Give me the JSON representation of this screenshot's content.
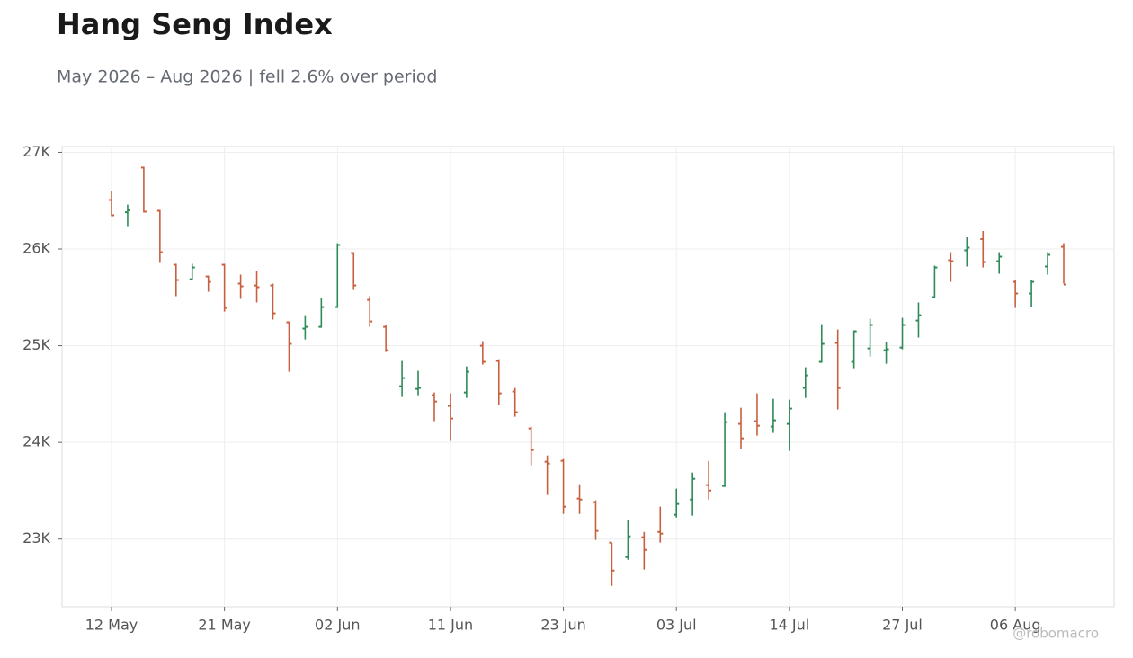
{
  "chart_data": {
    "type": "ohlc",
    "title": "Hang Seng Index",
    "subtitle": "May 2026 – Aug 2026 | fell 2.6% over period",
    "watermark": "@robomacro",
    "categories": [
      "12 May",
      null,
      null,
      null,
      null,
      null,
      null,
      "21 May",
      null,
      null,
      null,
      null,
      null,
      null,
      "02 Jun",
      null,
      null,
      null,
      null,
      null,
      null,
      "11 Jun",
      null,
      null,
      null,
      null,
      null,
      null,
      "23 Jun",
      null,
      null,
      null,
      null,
      null,
      null,
      "03 Jul",
      null,
      null,
      null,
      null,
      null,
      null,
      "14 Jul",
      null,
      null,
      null,
      null,
      null,
      null,
      "27 Jul",
      null,
      null,
      null,
      null,
      null,
      null,
      "06 Aug",
      null,
      null,
      null
    ],
    "open": [
      26507,
      26380,
      26842,
      26395,
      25837,
      25688,
      25716,
      25837,
      25642,
      25623,
      25623,
      25242,
      25177,
      25195,
      25400,
      25958,
      25474,
      25195,
      24581,
      24553,
      24488,
      24377,
      24516,
      25000,
      24842,
      24526,
      24144,
      23800,
      23809,
      23419,
      23381,
      22963,
      22814,
      23019,
      23074,
      23251,
      23409,
      23558,
      23549,
      24191,
      24219,
      24163,
      24191,
      24563,
      24833,
      25028,
      24833,
      24972,
      24953,
      24981,
      25260,
      25502,
      25884,
      25986,
      26102,
      25874,
      25660,
      25540,
      25819,
      26023
    ],
    "high": [
      26600,
      26460,
      26851,
      26405,
      25847,
      25847,
      25726,
      25847,
      25735,
      25772,
      25642,
      25251,
      25316,
      25493,
      26060,
      25967,
      25512,
      25214,
      24842,
      24740,
      24516,
      24507,
      24786,
      25047,
      24860,
      24563,
      24163,
      23865,
      23828,
      23567,
      23400,
      22963,
      23195,
      23074,
      23335,
      23521,
      23688,
      23809,
      24312,
      24358,
      24507,
      24451,
      24442,
      24777,
      25223,
      25167,
      25158,
      25279,
      25037,
      25288,
      25447,
      25828,
      25967,
      26121,
      26186,
      25967,
      25679,
      25679,
      25967,
      26060
    ],
    "low": [
      26340,
      26237,
      26377,
      25856,
      25512,
      25679,
      25558,
      25353,
      25484,
      25447,
      25270,
      24730,
      25065,
      25186,
      25391,
      25577,
      25195,
      24935,
      24470,
      24488,
      24219,
      24014,
      24460,
      24805,
      24386,
      24265,
      23763,
      23456,
      23260,
      23260,
      22991,
      22516,
      22786,
      22684,
      22963,
      23223,
      23242,
      23409,
      23540,
      23930,
      24070,
      24098,
      23912,
      24460,
      24823,
      24340,
      24767,
      24888,
      24814,
      24963,
      25084,
      25493,
      25660,
      25819,
      25809,
      25744,
      25391,
      25400,
      25735,
      25642
    ],
    "close": [
      26349,
      26400,
      26386,
      25967,
      25679,
      25809,
      25660,
      25391,
      25614,
      25605,
      25335,
      25019,
      25195,
      25400,
      26042,
      25623,
      25251,
      24953,
      24665,
      24563,
      24423,
      24247,
      24730,
      24833,
      24507,
      24312,
      23921,
      23781,
      23335,
      23409,
      23084,
      22674,
      23028,
      22888,
      23056,
      23363,
      23623,
      23502,
      24209,
      24042,
      24172,
      24228,
      24349,
      24693,
      25019,
      24563,
      25149,
      25214,
      24963,
      25214,
      25316,
      25809,
      25874,
      26014,
      25865,
      25921,
      25540,
      25660,
      25940,
      25633
    ],
    "up_color": "#2e8b57",
    "down_color": "#c8603f",
    "ylim": [
      22300,
      27060
    ],
    "yticks": [
      {
        "value": 23000,
        "label": "23K"
      },
      {
        "value": 24000,
        "label": "24K"
      },
      {
        "value": 25000,
        "label": "25K"
      },
      {
        "value": 26000,
        "label": "26K"
      },
      {
        "value": 27000,
        "label": "27K"
      }
    ],
    "grid": true
  }
}
